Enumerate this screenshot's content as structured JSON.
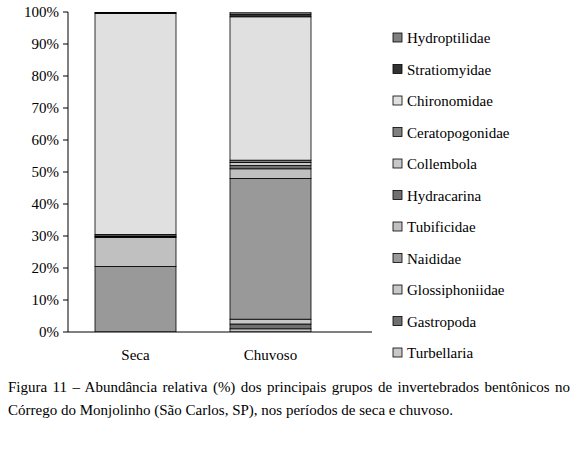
{
  "chart_data": {
    "type": "bar",
    "stacked": true,
    "legend": "right",
    "title": "Figura 11 – Abundância relativa (%) dos principais grupos de invertebrados bentônicos no Córrego do Monjolinho (São Carlos, SP), nos períodos de seca e chuvoso.",
    "categories": [
      "Seca",
      "Chuvoso"
    ],
    "ylim": [
      0,
      100
    ],
    "yticks": [
      {
        "value": 0,
        "label": "0%"
      },
      {
        "value": 10,
        "label": "10%"
      },
      {
        "value": 20,
        "label": "20%"
      },
      {
        "value": 30,
        "label": "30%"
      },
      {
        "value": 40,
        "label": "40%"
      },
      {
        "value": 50,
        "label": "50%"
      },
      {
        "value": 60,
        "label": "60%"
      },
      {
        "value": 70,
        "label": "70%"
      },
      {
        "value": 80,
        "label": "80%"
      },
      {
        "value": 90,
        "label": "90%"
      },
      {
        "value": 100,
        "label": "100%"
      }
    ],
    "grid": false,
    "series": [
      {
        "name": "Turbellaria",
        "color": "#c8c8c8",
        "values": [
          0,
          1
        ]
      },
      {
        "name": "Gastropoda",
        "color": "#707070",
        "values": [
          0,
          1.5
        ]
      },
      {
        "name": "Glossiphoniidae",
        "color": "#c8c8c8",
        "values": [
          0,
          1.5
        ]
      },
      {
        "name": "Naididae",
        "color": "#999999",
        "values": [
          20.5,
          44
        ]
      },
      {
        "name": "Tubificidae",
        "color": "#c0c0c0",
        "values": [
          9,
          3
        ]
      },
      {
        "name": "Hydracarina",
        "color": "#707070",
        "values": [
          0.3,
          1
        ]
      },
      {
        "name": "Collembola",
        "color": "#c8c8c8",
        "values": [
          0.2,
          1
        ]
      },
      {
        "name": "Ceratopogonidae",
        "color": "#808080",
        "values": [
          0.5,
          0.7
        ]
      },
      {
        "name": "Chironomidae",
        "color": "#e0e0e0",
        "values": [
          69,
          44.8
        ]
      },
      {
        "name": "Stratiomyidae",
        "color": "#333333",
        "values": [
          0.3,
          0.8
        ]
      },
      {
        "name": "Hydroptilidae",
        "color": "#808080",
        "values": [
          0.2,
          0.7
        ]
      }
    ]
  }
}
